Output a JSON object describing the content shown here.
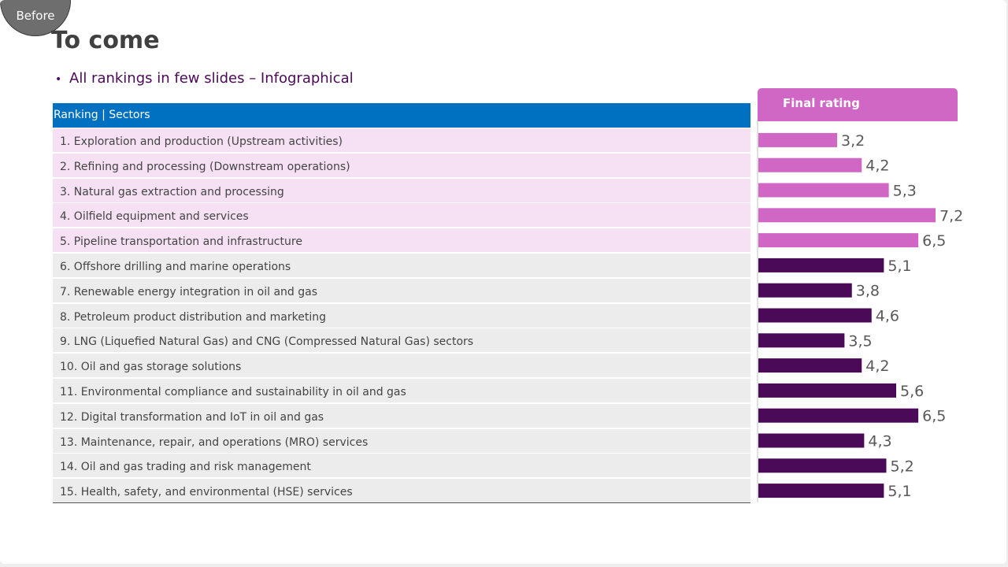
{
  "badge": "Before",
  "title": "To come",
  "bullet": "All rankings in few slides – Infographical",
  "table": {
    "header": "Ranking | Sectors",
    "rows": [
      "1. Exploration and production (Upstream activities)",
      "2. Refining and processing (Downstream operations)",
      "3. Natural gas extraction and processing",
      "4. Oilfield equipment and services",
      "5. Pipeline transportation and infrastructure",
      "6. Offshore drilling and marine operations",
      "7. Renewable energy integration in oil and gas",
      "8. Petroleum product distribution and marketing",
      "9. LNG (Liquefied Natural Gas) and CNG (Compressed Natural Gas) sectors",
      "10. Oil and gas storage solutions",
      "11. Environmental compliance and sustainability in oil and gas",
      "12. Digital transformation and IoT in oil and gas",
      "13. Maintenance, repair, and operations (MRO) services",
      "14. Oil and gas trading and risk management",
      "15. Health, safety, and environmental (HSE) services"
    ]
  },
  "chart_data": {
    "type": "bar",
    "orientation": "horizontal",
    "title": "Final rating",
    "categories": [
      "1",
      "2",
      "3",
      "4",
      "5",
      "6",
      "7",
      "8",
      "9",
      "10",
      "11",
      "12",
      "13",
      "14",
      "15"
    ],
    "values": [
      3.2,
      4.2,
      5.3,
      7.2,
      6.5,
      5.1,
      3.8,
      4.6,
      3.5,
      4.2,
      5.6,
      6.5,
      4.3,
      5.2,
      5.1
    ],
    "labels": [
      "3,2",
      "4,2",
      "5,3",
      "7,2",
      "6,5",
      "5,1",
      "3,8",
      "4,6",
      "3,5",
      "4,2",
      "5,6",
      "6,5",
      "4,3",
      "5,2",
      "5,1"
    ],
    "highlight_count": 5,
    "xlim": [
      0,
      7.2
    ],
    "colors": {
      "highlight": "#d167c4",
      "rest": "#4a0a57"
    }
  }
}
